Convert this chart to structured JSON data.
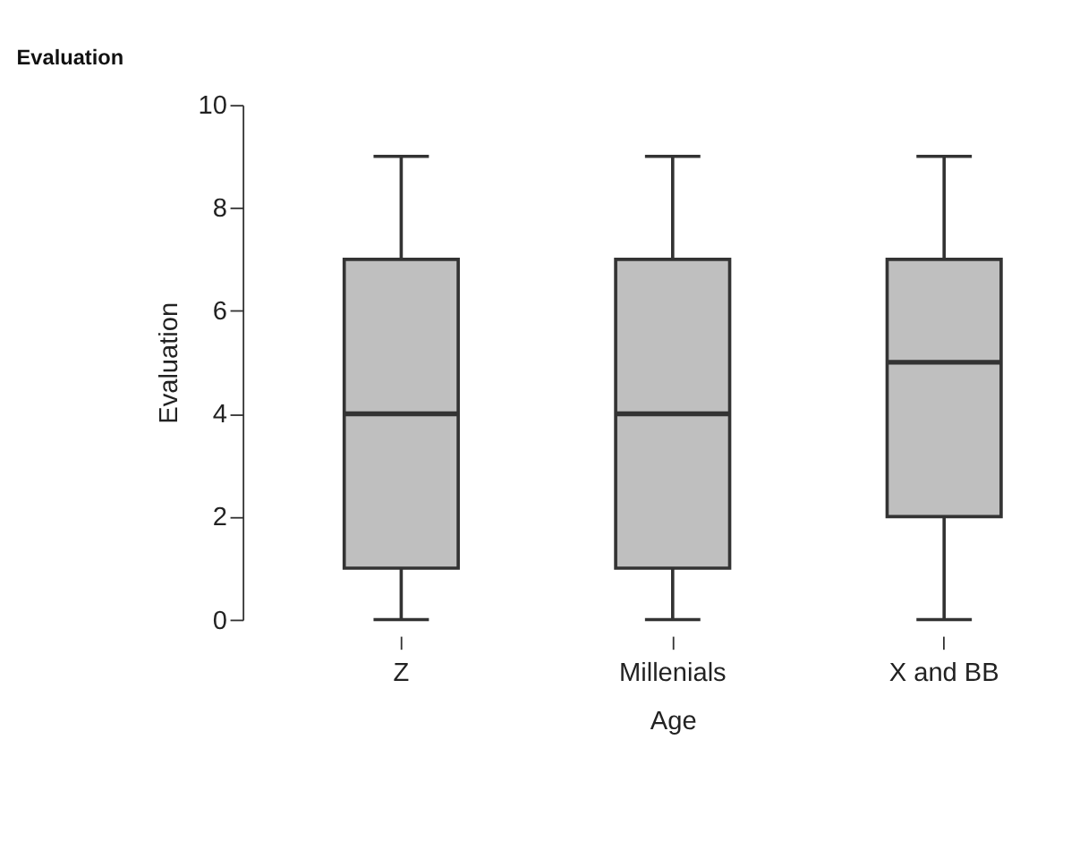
{
  "chart_data": {
    "type": "box",
    "title": "Evaluation",
    "xlabel": "Age",
    "ylabel": "Evaluation",
    "categories": [
      "Z",
      "Millenials",
      "X and BB"
    ],
    "boxes": [
      {
        "low": 0,
        "q1": 1,
        "median": 4,
        "q3": 7,
        "high": 9
      },
      {
        "low": 0,
        "q1": 1,
        "median": 4,
        "q3": 7,
        "high": 9
      },
      {
        "low": 0,
        "q1": 2,
        "median": 5,
        "q3": 7,
        "high": 9
      }
    ],
    "color": "#bfbfbf",
    "ylim": [
      0,
      10
    ],
    "yticks": [
      0,
      2,
      4,
      6,
      8,
      10
    ],
    "grid": false
  }
}
